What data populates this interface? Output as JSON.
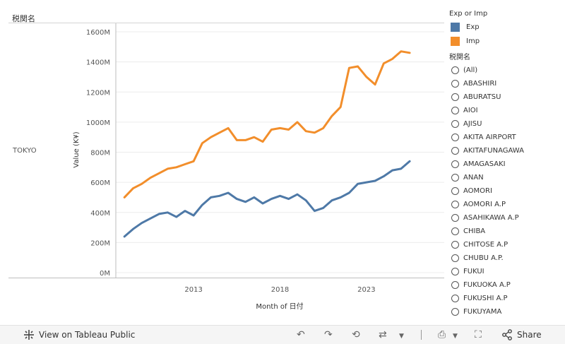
{
  "header": {
    "row_field": "税関名",
    "row_value": "TOKYO"
  },
  "colors": {
    "exp": "#4e79a7",
    "imp": "#f28e2b",
    "grid": "#ececec",
    "axis": "#bdbdbd"
  },
  "legend": {
    "title": "Exp or Imp",
    "items": [
      {
        "label": "Exp",
        "color": "#4e79a7"
      },
      {
        "label": "Imp",
        "color": "#f28e2b"
      }
    ]
  },
  "filter": {
    "title": "税関名",
    "items": [
      "(All)",
      "ABASHIRI",
      "ABURATSU",
      "AIOI",
      "AJISU",
      "AKITA AIRPORT",
      "AKITAFUNAGAWA",
      "AMAGASAKI",
      "ANAN",
      "AOMORI",
      "AOMORI A.P",
      "ASAHIKAWA A.P",
      "CHIBA",
      "CHITOSE A.P",
      "CHUBU A.P.",
      "FUKUI",
      "FUKUOKA A.P",
      "FUKUSHI A.P",
      "FUKUYAMA"
    ]
  },
  "toolbar": {
    "view_label": "View on Tableau Public",
    "share_label": "Share"
  },
  "chart_data": {
    "type": "line",
    "title": "",
    "xlabel": "Month of 日付",
    "ylabel": "Value (K¥)",
    "x_ticks": [
      "2013",
      "2018",
      "2023"
    ],
    "x_tick_years": [
      2013,
      2018,
      2023
    ],
    "y_ticks": [
      "0M",
      "200M",
      "400M",
      "600M",
      "800M",
      "1000M",
      "1200M",
      "1400M",
      "1600M"
    ],
    "y_tick_values": [
      0,
      200,
      400,
      600,
      800,
      1000,
      1200,
      1400,
      1600
    ],
    "ylim": [
      0,
      1650
    ],
    "xlim": [
      2008.5,
      2027.5
    ],
    "series": [
      {
        "name": "Exp",
        "x": [
          2009.0,
          2009.5,
          2010.0,
          2010.5,
          2011.0,
          2011.5,
          2012.0,
          2012.5,
          2013.0,
          2013.5,
          2014.0,
          2014.5,
          2015.0,
          2015.5,
          2016.0,
          2016.5,
          2017.0,
          2017.5,
          2018.0,
          2018.5,
          2019.0,
          2019.5,
          2020.0,
          2020.5,
          2021.0,
          2021.5,
          2022.0,
          2022.5,
          2023.0,
          2023.5,
          2024.0,
          2024.5,
          2025.0,
          2025.5
        ],
        "values": [
          240,
          290,
          330,
          360,
          390,
          400,
          370,
          410,
          380,
          450,
          500,
          510,
          530,
          490,
          470,
          500,
          460,
          490,
          510,
          490,
          520,
          480,
          410,
          430,
          480,
          500,
          530,
          590,
          600,
          610,
          640,
          680,
          690,
          740
        ]
      },
      {
        "name": "Imp",
        "x": [
          2009.0,
          2009.5,
          2010.0,
          2010.5,
          2011.0,
          2011.5,
          2012.0,
          2012.5,
          2013.0,
          2013.5,
          2014.0,
          2014.5,
          2015.0,
          2015.5,
          2016.0,
          2016.5,
          2017.0,
          2017.5,
          2018.0,
          2018.5,
          2019.0,
          2019.5,
          2020.0,
          2020.5,
          2021.0,
          2021.5,
          2022.0,
          2022.5,
          2023.0,
          2023.5,
          2024.0,
          2024.5,
          2025.0,
          2025.5
        ],
        "values": [
          500,
          560,
          590,
          630,
          660,
          690,
          700,
          720,
          740,
          860,
          900,
          930,
          960,
          880,
          880,
          900,
          870,
          950,
          960,
          950,
          1000,
          940,
          930,
          960,
          1040,
          1100,
          1360,
          1370,
          1300,
          1250,
          1390,
          1420,
          1470,
          1460
        ]
      }
    ]
  }
}
